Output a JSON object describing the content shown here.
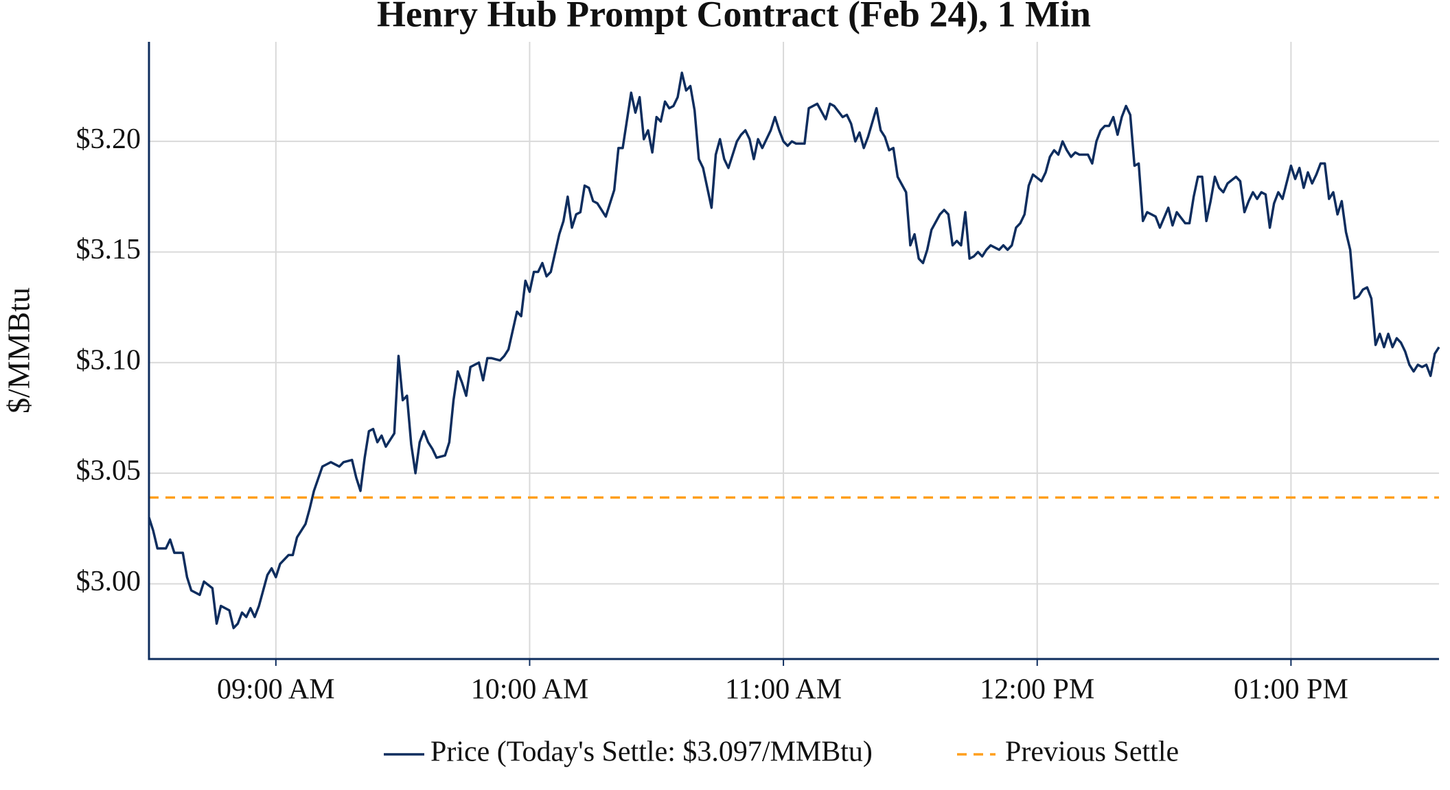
{
  "chart_data": {
    "type": "line",
    "title": "Henry Hub Prompt Contract (Feb 24), 1 Min",
    "y_label": "$/MMBtu",
    "xlim": [
      "08:30",
      "13:35"
    ],
    "xticks": [
      {
        "value": "09:00",
        "label": "09:00 AM"
      },
      {
        "value": "10:00",
        "label": "10:00 AM"
      },
      {
        "value": "11:00",
        "label": "11:00 AM"
      },
      {
        "value": "12:00",
        "label": "12:00 PM"
      },
      {
        "value": "13:00",
        "label": "01:00 PM"
      }
    ],
    "ylim": [
      2.966,
      3.245
    ],
    "yticks": [
      {
        "value": 3.0,
        "label": "$3.00"
      },
      {
        "value": 3.05,
        "label": "$3.05"
      },
      {
        "value": 3.1,
        "label": "$3.10"
      },
      {
        "value": 3.15,
        "label": "$3.15"
      },
      {
        "value": 3.2,
        "label": "$3.20"
      }
    ],
    "grid": true,
    "legend": "bottom",
    "x": [
      "08:30",
      "08:31",
      "08:32",
      "08:34",
      "08:35",
      "08:36",
      "08:38",
      "08:39",
      "08:40",
      "08:42",
      "08:43",
      "08:45",
      "08:46",
      "08:47",
      "08:49",
      "08:50",
      "08:51",
      "08:52",
      "08:53",
      "08:54",
      "08:55",
      "08:56",
      "08:58",
      "08:59",
      "09:00",
      "09:01",
      "09:03",
      "09:04",
      "09:05",
      "09:07",
      "09:08",
      "09:09",
      "09:11",
      "09:12",
      "09:13",
      "09:15",
      "09:16",
      "09:18",
      "09:19",
      "09:20",
      "09:21",
      "09:22",
      "09:23",
      "09:24",
      "09:25",
      "09:26",
      "09:28",
      "09:29",
      "09:30",
      "09:31",
      "09:32",
      "09:33",
      "09:34",
      "09:35",
      "09:36",
      "09:37",
      "09:38",
      "09:40",
      "09:41",
      "09:42",
      "09:43",
      "09:44",
      "09:45",
      "09:46",
      "09:48",
      "09:49",
      "09:50",
      "09:51",
      "09:53",
      "09:54",
      "09:55",
      "09:57",
      "09:58",
      "09:59",
      "10:00",
      "10:01",
      "10:02",
      "10:03",
      "10:04",
      "10:05",
      "10:07",
      "10:08",
      "10:09",
      "10:10",
      "10:11",
      "10:12",
      "10:13",
      "10:14",
      "10:15",
      "10:16",
      "10:18",
      "10:19",
      "10:20",
      "10:21",
      "10:22",
      "10:24",
      "10:25",
      "10:26",
      "10:27",
      "10:28",
      "10:29",
      "10:30",
      "10:31",
      "10:32",
      "10:33",
      "10:34",
      "10:35",
      "10:36",
      "10:37",
      "10:38",
      "10:39",
      "10:40",
      "10:41",
      "10:43",
      "10:44",
      "10:45",
      "10:46",
      "10:47",
      "10:49",
      "10:50",
      "10:51",
      "10:52",
      "10:53",
      "10:54",
      "10:55",
      "10:57",
      "10:58",
      "10:59",
      "11:00",
      "11:01",
      "11:02",
      "11:03",
      "11:05",
      "11:06",
      "11:07",
      "11:08",
      "11:10",
      "11:11",
      "11:12",
      "11:14",
      "11:15",
      "11:16",
      "11:17",
      "11:18",
      "11:19",
      "11:20",
      "11:22",
      "11:23",
      "11:24",
      "11:25",
      "11:26",
      "11:27",
      "11:29",
      "11:30",
      "11:31",
      "11:32",
      "11:33",
      "11:34",
      "11:35",
      "11:37",
      "11:38",
      "11:39",
      "11:40",
      "11:41",
      "11:42",
      "11:43",
      "11:44",
      "11:45",
      "11:46",
      "11:47",
      "11:48",
      "11:49",
      "11:51",
      "11:52",
      "11:53",
      "11:54",
      "11:55",
      "11:56",
      "11:57",
      "11:58",
      "11:59",
      "12:01",
      "12:02",
      "12:03",
      "12:04",
      "12:05",
      "12:06",
      "12:07",
      "12:08",
      "12:09",
      "12:10",
      "12:12",
      "12:13",
      "12:14",
      "12:15",
      "12:16",
      "12:17",
      "12:18",
      "12:19",
      "12:20",
      "12:21",
      "12:22",
      "12:23",
      "12:24",
      "12:25",
      "12:26",
      "12:27",
      "12:28",
      "12:29",
      "12:31",
      "12:32",
      "12:33",
      "12:35",
      "12:36",
      "12:37",
      "12:38",
      "12:39",
      "12:40",
      "12:41",
      "12:42",
      "12:43",
      "12:44",
      "12:45",
      "12:47",
      "12:48",
      "12:49",
      "12:50",
      "12:51",
      "12:52",
      "12:53",
      "12:54",
      "12:55",
      "12:56",
      "12:57",
      "12:58",
      "13:00",
      "13:01",
      "13:02",
      "13:03",
      "13:04",
      "13:05",
      "13:06",
      "13:07",
      "13:08",
      "13:09",
      "13:10",
      "13:11",
      "13:12",
      "13:13",
      "13:14",
      "13:15",
      "13:16",
      "13:17",
      "13:18",
      "13:19",
      "13:20",
      "13:21",
      "13:22",
      "13:23",
      "13:24",
      "13:25",
      "13:26",
      "13:27",
      "13:28",
      "13:29",
      "13:30",
      "13:31",
      "13:32",
      "13:33",
      "13:34",
      "13:35"
    ],
    "series": [
      {
        "name": "Price (Today's Settle: $3.097/MMBtu)",
        "color": "#0e2d5e",
        "values": [
          3.03,
          3.024,
          3.016,
          3.016,
          3.02,
          3.014,
          3.014,
          3.003,
          2.997,
          2.995,
          3.001,
          2.998,
          2.982,
          2.99,
          2.988,
          2.98,
          2.982,
          2.987,
          2.985,
          2.989,
          2.985,
          2.99,
          3.004,
          3.007,
          3.003,
          3.009,
          3.013,
          3.013,
          3.021,
          3.027,
          3.034,
          3.042,
          3.053,
          3.054,
          3.055,
          3.053,
          3.055,
          3.056,
          3.048,
          3.042,
          3.057,
          3.069,
          3.07,
          3.064,
          3.067,
          3.062,
          3.068,
          3.103,
          3.083,
          3.085,
          3.063,
          3.05,
          3.064,
          3.069,
          3.064,
          3.061,
          3.057,
          3.058,
          3.064,
          3.083,
          3.096,
          3.091,
          3.085,
          3.098,
          3.1,
          3.092,
          3.102,
          3.102,
          3.101,
          3.103,
          3.106,
          3.123,
          3.121,
          3.137,
          3.132,
          3.141,
          3.141,
          3.145,
          3.139,
          3.141,
          3.158,
          3.164,
          3.175,
          3.161,
          3.167,
          3.168,
          3.18,
          3.179,
          3.173,
          3.172,
          3.166,
          3.172,
          3.178,
          3.197,
          3.197,
          3.222,
          3.213,
          3.22,
          3.201,
          3.205,
          3.195,
          3.211,
          3.209,
          3.218,
          3.215,
          3.216,
          3.22,
          3.231,
          3.223,
          3.225,
          3.214,
          3.192,
          3.188,
          3.17,
          3.194,
          3.201,
          3.192,
          3.188,
          3.2,
          3.203,
          3.205,
          3.201,
          3.192,
          3.201,
          3.197,
          3.205,
          3.211,
          3.205,
          3.2,
          3.198,
          3.2,
          3.199,
          3.199,
          3.215,
          3.216,
          3.217,
          3.21,
          3.217,
          3.216,
          3.211,
          3.212,
          3.208,
          3.2,
          3.204,
          3.197,
          3.202,
          3.215,
          3.205,
          3.202,
          3.196,
          3.197,
          3.184,
          3.177,
          3.153,
          3.158,
          3.147,
          3.145,
          3.151,
          3.16,
          3.167,
          3.169,
          3.167,
          3.153,
          3.155,
          3.153,
          3.168,
          3.147,
          3.148,
          3.15,
          3.148,
          3.151,
          3.153,
          3.151,
          3.153,
          3.151,
          3.153,
          3.161,
          3.163,
          3.167,
          3.18,
          3.185,
          3.182,
          3.186,
          3.193,
          3.196,
          3.194,
          3.2,
          3.196,
          3.193,
          3.195,
          3.194,
          3.194,
          3.19,
          3.2,
          3.205,
          3.207,
          3.207,
          3.211,
          3.203,
          3.211,
          3.216,
          3.212,
          3.189,
          3.19,
          3.164,
          3.168,
          3.167,
          3.166,
          3.161,
          3.17,
          3.162,
          3.168,
          3.163,
          3.163,
          3.175,
          3.184,
          3.184,
          3.164,
          3.173,
          3.184,
          3.179,
          3.177,
          3.181,
          3.184,
          3.182,
          3.168,
          3.173,
          3.177,
          3.174,
          3.177,
          3.176,
          3.161,
          3.172,
          3.177,
          3.174,
          3.189,
          3.183,
          3.188,
          3.179,
          3.186,
          3.181,
          3.185,
          3.19,
          3.19,
          3.174,
          3.177,
          3.167,
          3.173,
          3.159,
          3.151,
          3.129,
          3.13,
          3.133,
          3.134,
          3.129,
          3.108,
          3.113,
          3.107,
          3.113,
          3.107,
          3.111,
          3.109,
          3.105,
          3.099,
          3.096,
          3.099,
          3.098,
          3.099,
          3.094,
          3.104,
          3.107
        ]
      }
    ],
    "hlines": [
      {
        "name": "Previous Settle",
        "color": "#ff9f1c",
        "value": 3.039,
        "dashed": true
      }
    ]
  }
}
